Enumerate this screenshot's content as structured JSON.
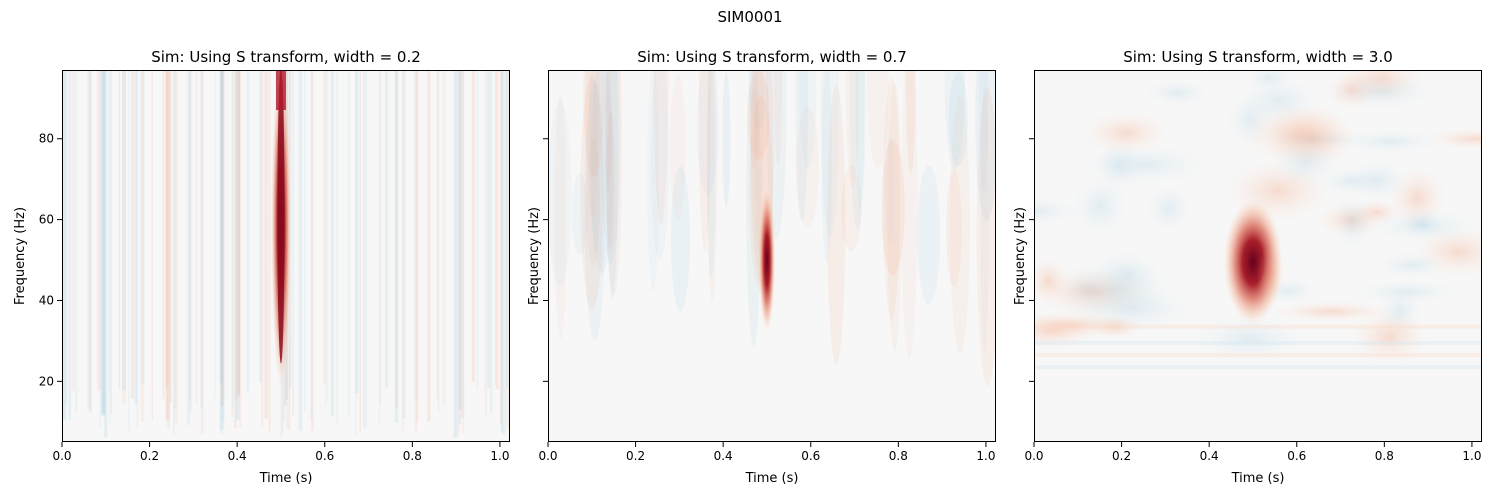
{
  "figure": {
    "title": "SIM0001"
  },
  "chart_data": [
    {
      "type": "heatmap",
      "title": "Sim: Using S transform, width = 0.2",
      "xlabel": "Time (s)",
      "ylabel": "Frequency (Hz)",
      "xlim": [
        0.0,
        1.023
      ],
      "ylim": [
        5,
        97
      ],
      "xticks": [
        "0.0",
        "0.2",
        "0.4",
        "0.6",
        "0.8",
        "1.0"
      ],
      "yticks": [
        "20",
        "40",
        "60",
        "80"
      ],
      "show_ytick_labels": true,
      "colormap": "RdBu_r",
      "peak": {
        "time": 0.5,
        "freq_center": 50,
        "freq_range": [
          20,
          97
        ],
        "time_width": 0.006
      }
    },
    {
      "type": "heatmap",
      "title": "Sim: Using S transform, width = 0.7",
      "xlabel": "Time (s)",
      "ylabel": "Frequency (Hz)",
      "xlim": [
        0.0,
        1.023
      ],
      "ylim": [
        5,
        97
      ],
      "xticks": [
        "0.0",
        "0.2",
        "0.4",
        "0.6",
        "0.8",
        "1.0"
      ],
      "yticks": [
        "20",
        "40",
        "60",
        "80"
      ],
      "show_ytick_labels": false,
      "colormap": "RdBu_r",
      "peak": {
        "time": 0.5,
        "freq_center": 50,
        "freq_range": [
          32,
          68
        ],
        "time_width": 0.012
      }
    },
    {
      "type": "heatmap",
      "title": "Sim: Using S transform, width = 3.0",
      "xlabel": "Time (s)",
      "ylabel": "Frequency (Hz)",
      "xlim": [
        0.0,
        1.023
      ],
      "ylim": [
        5,
        97
      ],
      "xticks": [
        "0.0",
        "0.2",
        "0.4",
        "0.6",
        "0.8",
        "1.0"
      ],
      "yticks": [
        "20",
        "40",
        "60",
        "80"
      ],
      "show_ytick_labels": false,
      "colormap": "RdBu_r",
      "peak": {
        "time": 0.5,
        "freq_center": 52,
        "freq_range": [
          38,
          64
        ],
        "time_width": 0.04
      }
    }
  ]
}
